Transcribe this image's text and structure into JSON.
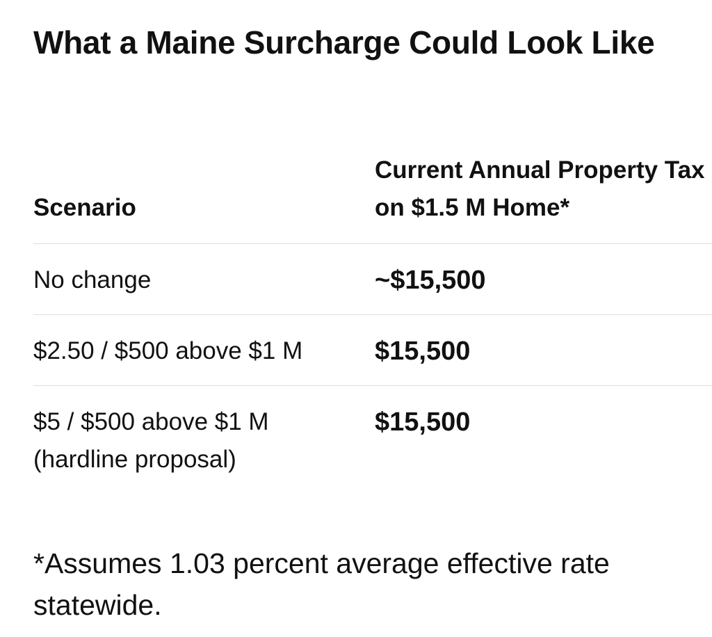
{
  "title": "What a Maine Surcharge Could Look Like",
  "table": {
    "headers": {
      "scenario": "Scenario",
      "tax": "Current Annual Property Tax on $1.5 M Home*"
    },
    "rows": [
      {
        "scenario": "No change",
        "tax": "~$15,500"
      },
      {
        "scenario": "$2.50 / $500 above $1 M",
        "tax": "$15,500"
      },
      {
        "scenario": "$5 / $500 above $1 M (hardline proposal)",
        "tax": "$15,500"
      }
    ]
  },
  "footnote": "*Assumes 1.03 percent average effective rate statewide."
}
